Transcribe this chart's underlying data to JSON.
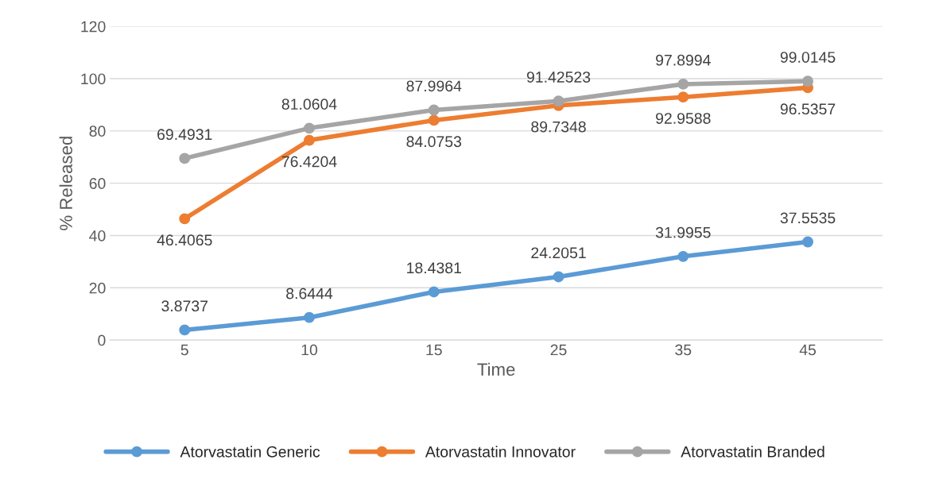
{
  "chart_data": {
    "type": "line",
    "xlabel": "Time",
    "ylabel": "% Released",
    "categories": [
      "5",
      "10",
      "15",
      "25",
      "35",
      "45"
    ],
    "series": [
      {
        "name": "Atorvastatin Generic",
        "color": "#5b9bd5",
        "values": [
          3.8737,
          8.6444,
          18.4381,
          24.2051,
          31.9955,
          37.5535
        ]
      },
      {
        "name": "Atorvastatin Innovator",
        "color": "#ed7d31",
        "values": [
          46.4065,
          76.4204,
          84.0753,
          89.7348,
          92.9588,
          96.5357
        ]
      },
      {
        "name": "Atorvastatin Branded",
        "color": "#a5a5a5",
        "values": [
          69.4931,
          81.0604,
          87.9964,
          91.42523,
          97.8994,
          99.0145
        ]
      }
    ],
    "ylim": [
      0,
      120
    ],
    "yticks": [
      0,
      20,
      40,
      60,
      80,
      100,
      120
    ],
    "grid": "y",
    "legend": "bottom",
    "marker": "circle",
    "line_style": "solid",
    "data_labels": true
  }
}
